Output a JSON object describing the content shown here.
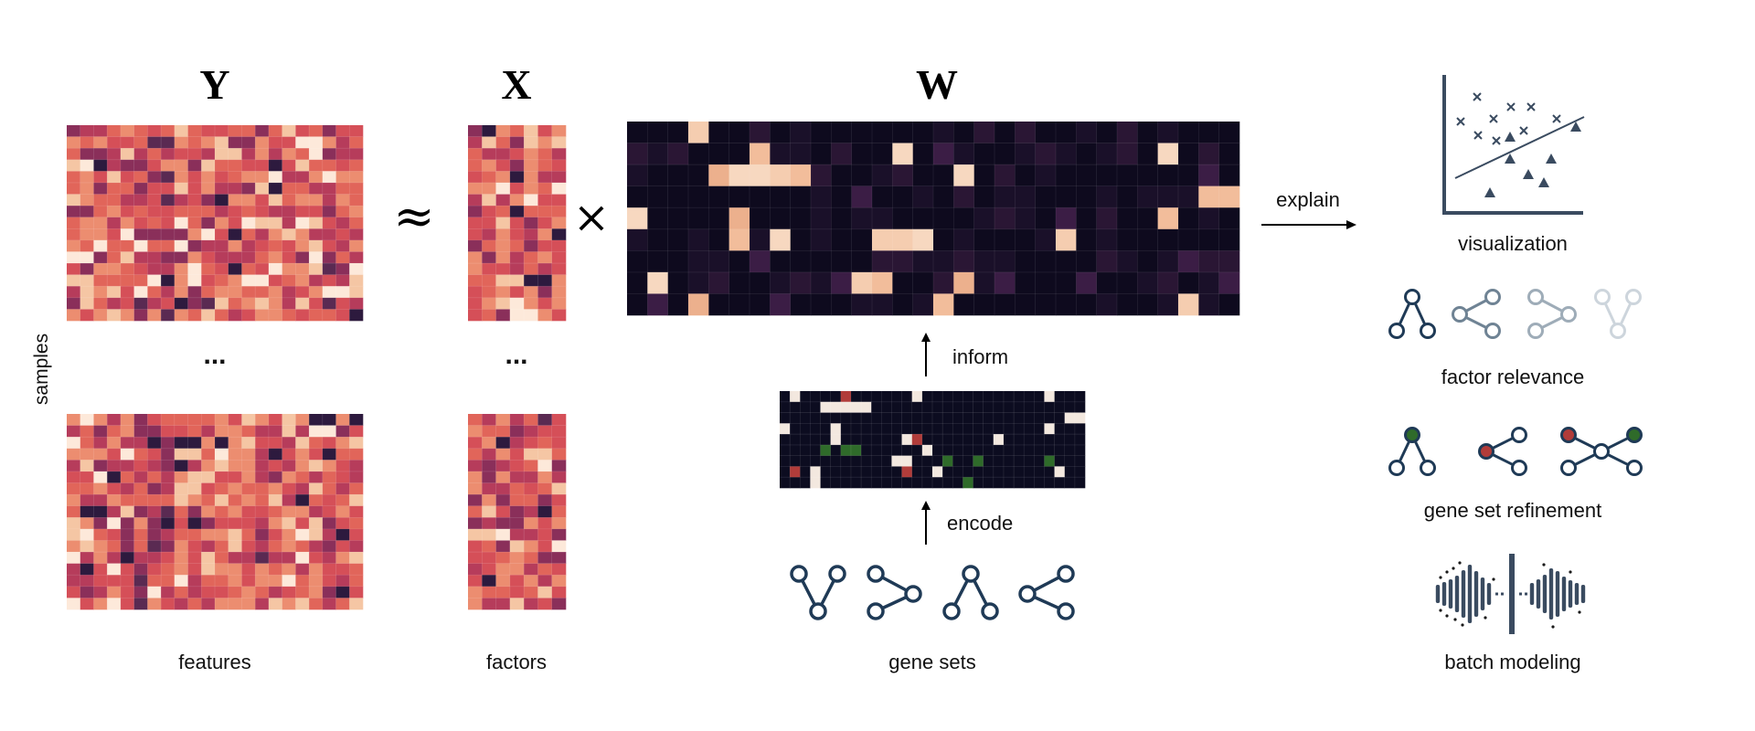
{
  "labels": {
    "samples": "samples",
    "features": "features",
    "factors": "factors",
    "gene_sets": "gene sets",
    "inform": "inform",
    "encode": "encode",
    "explain": "explain",
    "visualization": "visualization",
    "factor_relevance": "factor relevance",
    "gene_set_refinement": "gene set refinement",
    "batch_modeling": "batch modeling"
  },
  "matrices": {
    "Y": "Y",
    "X": "X",
    "W": "W"
  },
  "operators": {
    "approx": "≈",
    "times": "×",
    "ellipsis": "..."
  },
  "colors": {
    "heat_palette": [
      "#2d1a3e",
      "#5a2a52",
      "#8a2f5a",
      "#b63c5b",
      "#d54f58",
      "#e1655a",
      "#ec8d70",
      "#f5c6a4",
      "#fde9da"
    ],
    "w_dark": "#0e0a1e",
    "w_mid": "#2a1634",
    "w_light": "#f2c1a2",
    "encode_dark": "#0c0c20",
    "encode_white": "#f3e8df",
    "encode_green": "#2f6b2a",
    "encode_red": "#b13c3a",
    "icon_navy": "#1f3a56",
    "icon_gray": "#6f8394",
    "icon_light": "#9eacb8",
    "icon_faint": "#cdd5dc"
  }
}
